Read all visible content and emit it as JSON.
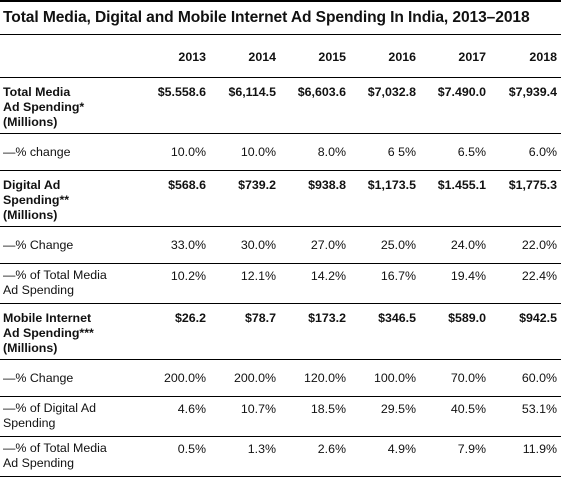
{
  "title": "Total Media, Digital and Mobile Internet Ad Spending In India, 2013–2018",
  "chart_data": {
    "type": "table",
    "title": "Total Media, Digital and Mobile Internet Ad Spending In India, 2013–2018",
    "columns": [
      "2013",
      "2014",
      "2015",
      "2016",
      "2017",
      "2018"
    ],
    "rows": [
      {
        "label": [
          "Total Media",
          "Ad Spending*",
          "(Millions)"
        ],
        "bold": true,
        "values": [
          "$5.558.6",
          "$6,114.5",
          "$6,603.6",
          "$7,032.8",
          "$7.490.0",
          "$7,939.4"
        ]
      },
      {
        "label": [
          "—% change"
        ],
        "bold": false,
        "values": [
          "10.0%",
          "10.0%",
          "8.0%",
          "6 5%",
          "6.5%",
          "6.0%"
        ]
      },
      {
        "label": [
          "Digital Ad",
          "Spending**",
          "(Millions)"
        ],
        "bold": true,
        "values": [
          "$568.6",
          "$739.2",
          "$938.8",
          "$1,173.5",
          "$1.455.1",
          "$1,775.3"
        ]
      },
      {
        "label": [
          "—% Change"
        ],
        "bold": false,
        "values": [
          "33.0%",
          "30.0%",
          "27.0%",
          "25.0%",
          "24.0%",
          "22.0%"
        ]
      },
      {
        "label": [
          "—% of Total Media",
          "Ad Spending"
        ],
        "bold": false,
        "values": [
          "10.2%",
          "12.1%",
          "14.2%",
          "16.7%",
          "19.4%",
          "22.4%"
        ]
      },
      {
        "label": [
          "Mobile Internet",
          "Ad Spending***",
          "(Millions)"
        ],
        "bold": true,
        "values": [
          "$26.2",
          "$78.7",
          "$173.2",
          "$346.5",
          "$589.0",
          "$942.5"
        ]
      },
      {
        "label": [
          "—% Change"
        ],
        "bold": false,
        "values": [
          "200.0%",
          "200.0%",
          "120.0%",
          "100.0%",
          "70.0%",
          "60.0%"
        ]
      },
      {
        "label": [
          "—% of Digital Ad",
          "Spending"
        ],
        "bold": false,
        "values": [
          "4.6%",
          "10.7%",
          "18.5%",
          "29.5%",
          "40.5%",
          "53.1%"
        ]
      },
      {
        "label": [
          "—% of Total Media",
          "Ad Spending"
        ],
        "bold": false,
        "values": [
          "0.5%",
          "1.3%",
          "2.6%",
          "4.9%",
          "7.9%",
          "11.9%"
        ]
      }
    ]
  }
}
